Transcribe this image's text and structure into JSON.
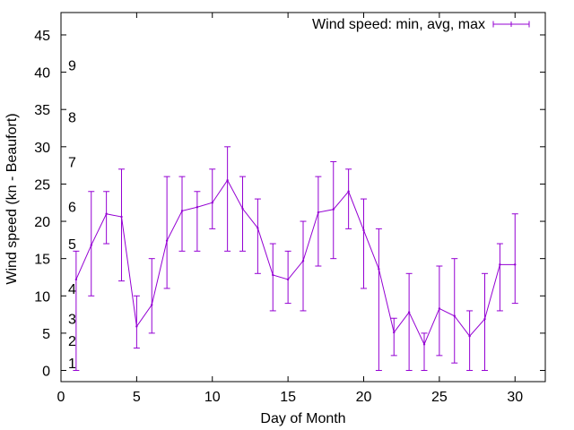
{
  "chart_data": {
    "type": "line",
    "title": "",
    "xlabel": "Day of Month",
    "ylabel": "Wind speed (kn - Beaufort)",
    "xlim": [
      0,
      32
    ],
    "ylim": [
      -1.5,
      48
    ],
    "xticks": [
      0,
      5,
      10,
      15,
      20,
      25,
      30
    ],
    "yticks": [
      0,
      5,
      10,
      15,
      20,
      25,
      30,
      35,
      40,
      45
    ],
    "grid": false,
    "legend_position": "top-right",
    "colors": {
      "series": "#9400D3",
      "axis": "#000000"
    },
    "beaufort_labels": [
      {
        "label": "1",
        "y": 1
      },
      {
        "label": "2",
        "y": 4
      },
      {
        "label": "3",
        "y": 7
      },
      {
        "label": "4",
        "y": 11
      },
      {
        "label": "5",
        "y": 17
      },
      {
        "label": "6",
        "y": 22
      },
      {
        "label": "7",
        "y": 28
      },
      {
        "label": "8",
        "y": 34
      },
      {
        "label": "9",
        "y": 41
      }
    ],
    "series": [
      {
        "name": "Wind speed: min, avg, max",
        "x": [
          1,
          2,
          3,
          4,
          5,
          6,
          7,
          8,
          9,
          10,
          11,
          12,
          13,
          14,
          15,
          16,
          17,
          18,
          19,
          20,
          21,
          22,
          23,
          24,
          25,
          26,
          27,
          28,
          29,
          30
        ],
        "avg": [
          12.2,
          16.8,
          21.0,
          20.6,
          5.9,
          8.8,
          17.4,
          21.4,
          21.9,
          22.5,
          25.5,
          21.7,
          19.1,
          12.8,
          12.2,
          14.7,
          21.2,
          21.6,
          24.0,
          18.8,
          13.6,
          5.1,
          7.8,
          3.5,
          8.3,
          7.3,
          4.6,
          6.9,
          14.2,
          14.2
        ],
        "min": [
          0,
          10,
          17,
          12,
          3,
          5,
          11,
          16,
          16,
          19,
          16,
          16,
          13,
          8,
          9,
          8,
          14,
          15,
          19,
          11,
          0,
          2,
          0,
          0,
          2,
          1,
          0,
          0,
          8,
          9
        ],
        "max": [
          16,
          24,
          24,
          27,
          10,
          15,
          26,
          26,
          24,
          27,
          30,
          26,
          23,
          17,
          16,
          20,
          26,
          28,
          27,
          23,
          19,
          7,
          13,
          5,
          14,
          15,
          8,
          13,
          17,
          21
        ]
      }
    ]
  }
}
